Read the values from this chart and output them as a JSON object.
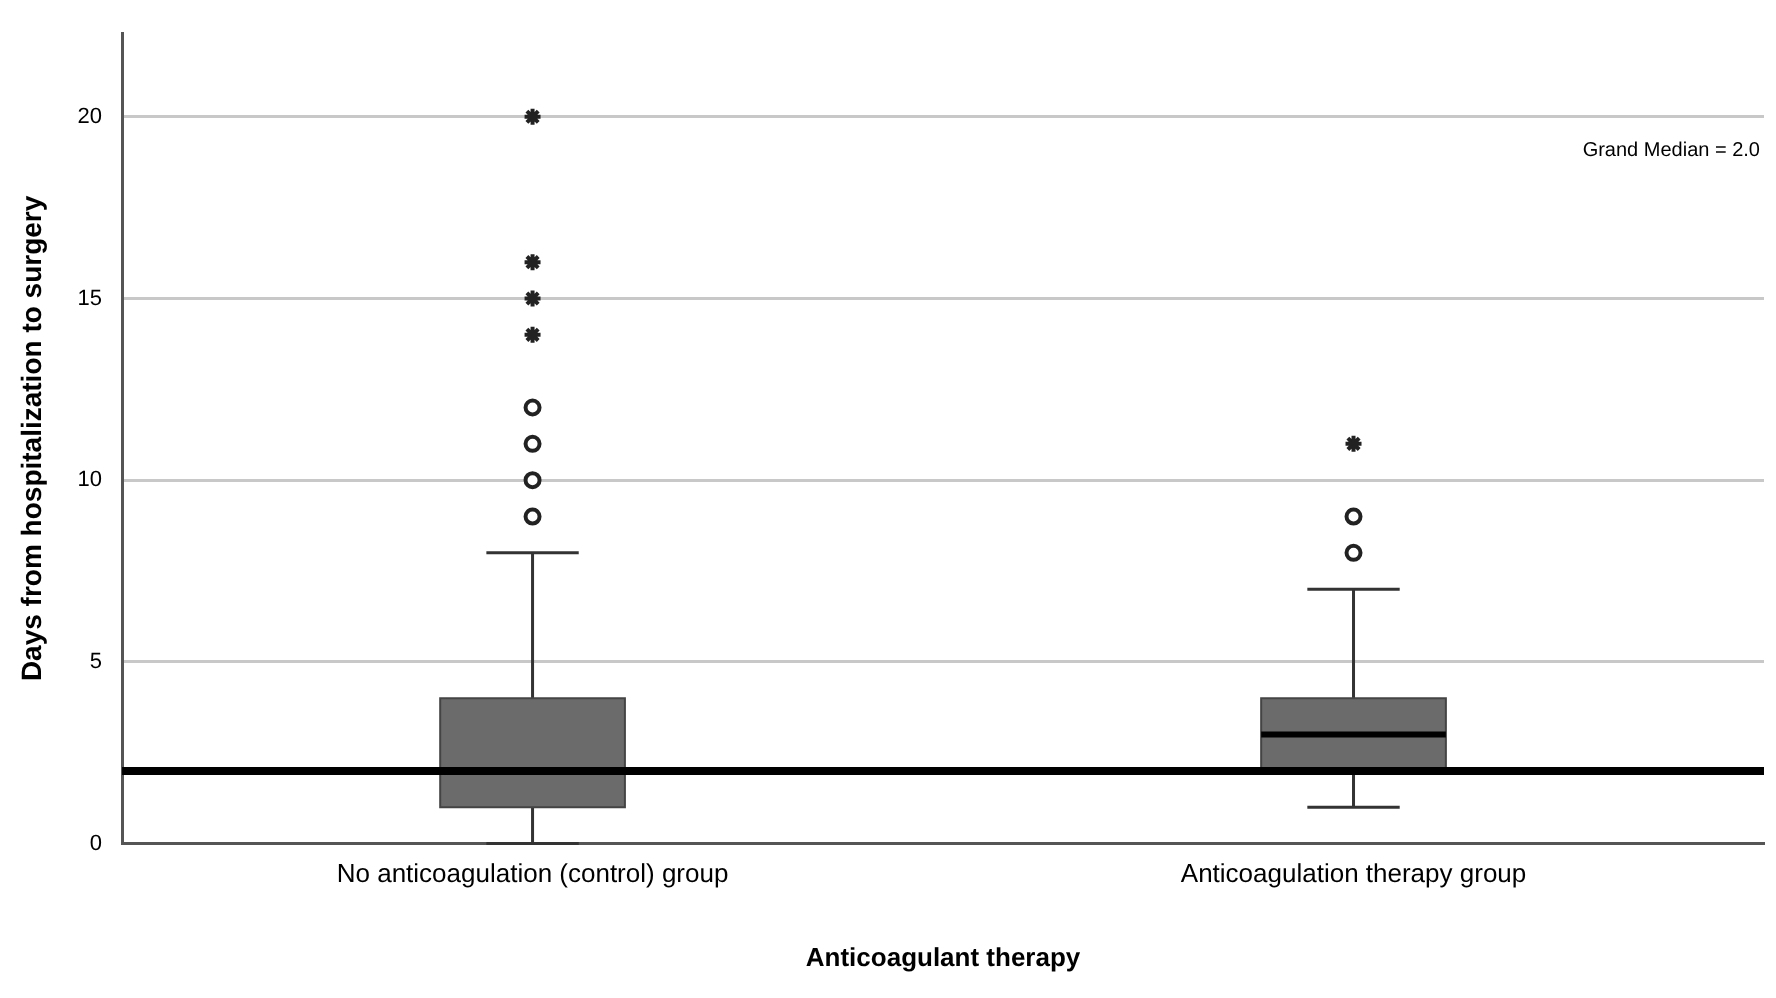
{
  "chart_data": {
    "type": "box",
    "xlabel": "Anticoagulant therapy",
    "ylabel": "Days from hospitalization to surgery",
    "categories": [
      "No anticoagulation (control) group",
      "Anticoagulation therapy group"
    ],
    "color": "#6b6b6b",
    "boxes": [
      {
        "low": 0,
        "q1": 1,
        "median": 2,
        "q3": 4,
        "high": 8,
        "outliers": [
          9,
          10,
          11,
          12,
          14,
          15,
          16,
          20
        ]
      },
      {
        "low": 1,
        "q1": 2,
        "median": 3,
        "q3": 4,
        "high": 7,
        "outliers": [
          8,
          9,
          11
        ]
      }
    ],
    "ylim": [
      0,
      22.3
    ],
    "yticks": [
      0,
      5,
      10,
      15,
      20
    ],
    "grid": "y",
    "marker": "circle",
    "ref_lines": [
      {
        "axis": "y",
        "value": 2,
        "label": "Grand Median = 2.0",
        "color": "#000000"
      }
    ]
  }
}
